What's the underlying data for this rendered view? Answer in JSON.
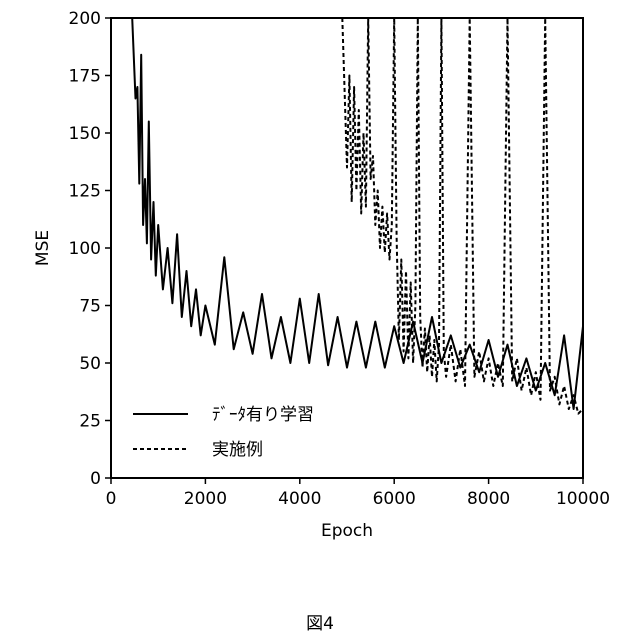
{
  "chart_data": {
    "type": "line",
    "xlabel": "Epoch",
    "ylabel": "MSE",
    "xlim": [
      0,
      10000
    ],
    "ylim": [
      0,
      200
    ],
    "x_ticks": [
      "0",
      "2000",
      "4000",
      "6000",
      "8000",
      "10000"
    ],
    "y_ticks": [
      "0",
      "25",
      "50",
      "75",
      "100",
      "125",
      "150",
      "175",
      "200"
    ],
    "grid": false,
    "legend_position": "bottom-left",
    "series": [
      {
        "name": "ﾃﾞｰﾀ有り学習",
        "style": "solid",
        "color": "#000000",
        "x": [
          450,
          520,
          560,
          600,
          640,
          680,
          720,
          760,
          800,
          850,
          900,
          950,
          1000,
          1100,
          1200,
          1300,
          1400,
          1500,
          1600,
          1700,
          1800,
          1900,
          2000,
          2200,
          2400,
          2600,
          2800,
          3000,
          3200,
          3400,
          3600,
          3800,
          4000,
          4200,
          4400,
          4600,
          4800,
          5000,
          5200,
          5400,
          5600,
          5800,
          6000,
          6200,
          6400,
          6600,
          6800,
          7000,
          7200,
          7400,
          7600,
          7800,
          8000,
          8200,
          8400,
          8600,
          8800,
          9000,
          9200,
          9400,
          9600,
          9800,
          10000
        ],
        "y": [
          200,
          165,
          170,
          128,
          184,
          110,
          130,
          102,
          155,
          95,
          120,
          88,
          110,
          82,
          100,
          76,
          106,
          70,
          90,
          66,
          82,
          62,
          75,
          58,
          96,
          56,
          72,
          54,
          80,
          52,
          70,
          50,
          78,
          50,
          80,
          49,
          70,
          48,
          68,
          48,
          68,
          48,
          66,
          50,
          68,
          50,
          70,
          50,
          62,
          48,
          58,
          46,
          60,
          44,
          58,
          40,
          52,
          38,
          50,
          36,
          62,
          30,
          66
        ]
      },
      {
        "name": "実施例",
        "style": "dashed",
        "color": "#000000",
        "x": [
          4900,
          5000,
          5050,
          5100,
          5150,
          5200,
          5250,
          5300,
          5350,
          5400,
          5450,
          5500,
          5550,
          5600,
          5650,
          5700,
          5750,
          5800,
          5850,
          5900,
          5950,
          6000,
          6050,
          6100,
          6150,
          6200,
          6250,
          6300,
          6350,
          6400,
          6450,
          6500,
          6550,
          6600,
          6650,
          6700,
          6750,
          6800,
          6850,
          6900,
          6950,
          7000,
          7050,
          7100,
          7200,
          7300,
          7400,
          7500,
          7600,
          7700,
          7800,
          7900,
          8000,
          8100,
          8200,
          8300,
          8400,
          8500,
          8600,
          8700,
          8800,
          8900,
          9000,
          9100,
          9200,
          9300,
          9400,
          9500,
          9600,
          9700,
          9800,
          9900,
          10000
        ],
        "y": [
          200,
          135,
          175,
          120,
          170,
          125,
          160,
          115,
          150,
          118,
          200,
          130,
          140,
          110,
          125,
          100,
          118,
          98,
          115,
          95,
          110,
          200,
          105,
          60,
          95,
          55,
          90,
          52,
          85,
          50,
          75,
          200,
          70,
          48,
          65,
          46,
          62,
          44,
          60,
          42,
          58,
          200,
          55,
          44,
          58,
          42,
          56,
          40,
          200,
          44,
          55,
          42,
          52,
          40,
          50,
          40,
          200,
          42,
          52,
          38,
          48,
          36,
          46,
          34,
          200,
          38,
          44,
          32,
          40,
          30,
          36,
          28,
          30
        ]
      }
    ]
  },
  "caption": "図4"
}
